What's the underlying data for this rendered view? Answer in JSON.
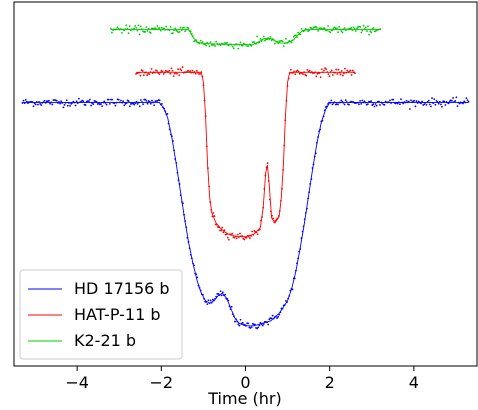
{
  "chart_data": {
    "type": "line",
    "title": "",
    "xlabel": "Time (hr)",
    "ylabel": "",
    "xlim": [
      -5.5,
      5.5
    ],
    "ylim": [
      -1.05,
      0.4
    ],
    "xticks": [
      -4,
      -2,
      0,
      2,
      4
    ],
    "xtick_labels": [
      "−4",
      "−2",
      "0",
      "2",
      "4"
    ],
    "y_ticks_shown": false,
    "grid": false,
    "legend_position": "lower-left",
    "series": [
      {
        "name": "HD 17156 b",
        "color": "#0000ff",
        "x_range": [
          -5.3,
          5.3
        ],
        "model": [
          [
            -5.3,
            0.0
          ],
          [
            -2.05,
            0.0
          ],
          [
            -1.95,
            -0.02
          ],
          [
            -1.85,
            -0.06
          ],
          [
            -1.75,
            -0.14
          ],
          [
            -1.65,
            -0.24
          ],
          [
            -1.55,
            -0.35
          ],
          [
            -1.45,
            -0.46
          ],
          [
            -1.35,
            -0.56
          ],
          [
            -1.25,
            -0.64
          ],
          [
            -1.15,
            -0.71
          ],
          [
            -1.05,
            -0.76
          ],
          [
            -0.95,
            -0.79
          ],
          [
            -0.85,
            -0.8
          ],
          [
            -0.75,
            -0.79
          ],
          [
            -0.65,
            -0.77
          ],
          [
            -0.55,
            -0.76
          ],
          [
            -0.45,
            -0.78
          ],
          [
            -0.35,
            -0.82
          ],
          [
            -0.25,
            -0.86
          ],
          [
            -0.15,
            -0.88
          ],
          [
            0.0,
            -0.89
          ],
          [
            0.2,
            -0.89
          ],
          [
            0.4,
            -0.88
          ],
          [
            0.6,
            -0.87
          ],
          [
            0.8,
            -0.84
          ],
          [
            1.0,
            -0.79
          ],
          [
            1.1,
            -0.74
          ],
          [
            1.2,
            -0.67
          ],
          [
            1.3,
            -0.58
          ],
          [
            1.4,
            -0.48
          ],
          [
            1.5,
            -0.37
          ],
          [
            1.6,
            -0.26
          ],
          [
            1.7,
            -0.16
          ],
          [
            1.8,
            -0.08
          ],
          [
            1.9,
            -0.03
          ],
          [
            2.0,
            0.0
          ],
          [
            5.3,
            0.0
          ]
        ]
      },
      {
        "name": "HAT-P-11 b",
        "color": "#ff0000",
        "x_range": [
          -2.6,
          2.6
        ],
        "model": [
          [
            -2.6,
            0.12
          ],
          [
            -1.05,
            0.12
          ],
          [
            -1.0,
            0.08
          ],
          [
            -0.95,
            -0.05
          ],
          [
            -0.9,
            -0.25
          ],
          [
            -0.85,
            -0.38
          ],
          [
            -0.8,
            -0.44
          ],
          [
            -0.7,
            -0.48
          ],
          [
            -0.6,
            -0.5
          ],
          [
            -0.5,
            -0.515
          ],
          [
            -0.4,
            -0.525
          ],
          [
            -0.2,
            -0.535
          ],
          [
            0.0,
            -0.535
          ],
          [
            0.2,
            -0.525
          ],
          [
            0.35,
            -0.5
          ],
          [
            0.42,
            -0.42
          ],
          [
            0.48,
            -0.28
          ],
          [
            0.52,
            -0.25
          ],
          [
            0.56,
            -0.32
          ],
          [
            0.62,
            -0.46
          ],
          [
            0.7,
            -0.48
          ],
          [
            0.8,
            -0.455
          ],
          [
            0.85,
            -0.38
          ],
          [
            0.9,
            -0.25
          ],
          [
            0.95,
            -0.05
          ],
          [
            1.0,
            0.08
          ],
          [
            1.05,
            0.12
          ],
          [
            2.6,
            0.12
          ]
        ]
      },
      {
        "name": "K2-21 b",
        "color": "#00cc00",
        "x_range": [
          -3.2,
          3.2
        ],
        "model": [
          [
            -3.2,
            0.29
          ],
          [
            -1.35,
            0.29
          ],
          [
            -1.25,
            0.26
          ],
          [
            -1.15,
            0.24
          ],
          [
            -1.0,
            0.235
          ],
          [
            -0.6,
            0.232
          ],
          [
            -0.2,
            0.23
          ],
          [
            0.2,
            0.232
          ],
          [
            0.35,
            0.245
          ],
          [
            0.45,
            0.255
          ],
          [
            0.6,
            0.255
          ],
          [
            0.7,
            0.245
          ],
          [
            0.85,
            0.236
          ],
          [
            1.0,
            0.238
          ],
          [
            1.15,
            0.25
          ],
          [
            1.25,
            0.27
          ],
          [
            1.35,
            0.285
          ],
          [
            1.45,
            0.29
          ],
          [
            3.2,
            0.29
          ]
        ]
      }
    ]
  }
}
